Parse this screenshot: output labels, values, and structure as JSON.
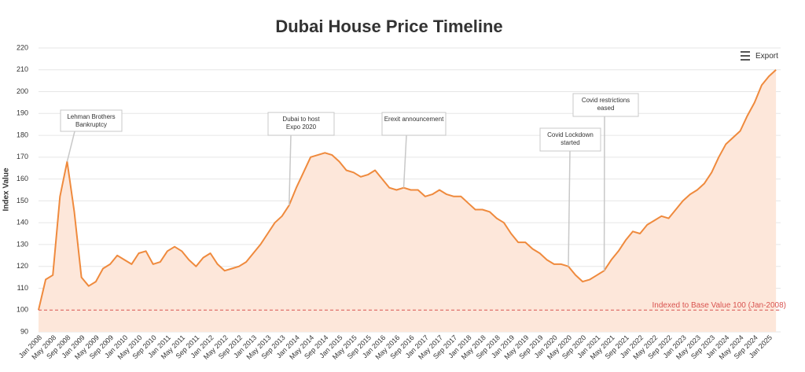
{
  "chart_data": {
    "type": "line",
    "title": "Dubai House Price Timeline",
    "y_label": "Index Value",
    "categories": [
      "Jan 2008",
      null,
      "May 2008",
      null,
      "Sep 2008",
      null,
      "Jan 2009",
      null,
      "May 2009",
      null,
      "Sep 2009",
      null,
      "Jan 2010",
      null,
      "May 2010",
      null,
      "Sep 2010",
      null,
      "Jan 2011",
      null,
      "May 2011",
      null,
      "Sep 2011",
      null,
      "Jan 2012",
      null,
      "May 2012",
      null,
      "Sep 2012",
      null,
      "Jan 2013",
      null,
      "May 2013",
      null,
      "Sep 2013",
      null,
      "Jan 2014",
      null,
      "May 2014",
      null,
      "Sep 2014",
      null,
      "Jan 2015",
      null,
      "May 2015",
      null,
      "Sep 2015",
      null,
      "Jan 2016",
      null,
      "May 2016",
      null,
      "Sep 2016",
      null,
      "Jan 2017",
      null,
      "May 2017",
      null,
      "Sep 2017",
      null,
      "Jan 2018",
      null,
      "May 2018",
      null,
      "Sep 2018",
      null,
      "Jan 2019",
      null,
      "May 2019",
      null,
      "Sep 2019",
      null,
      "Jan 2020",
      null,
      "May 2020",
      null,
      "Sep 2020",
      null,
      "Jan 2021",
      null,
      "May 2021",
      null,
      "Sep 2021",
      null,
      "Jan 2022",
      null,
      "May 2022",
      null,
      "Sep 2022",
      null,
      "Jan 2023",
      null,
      "May 2023",
      null,
      "Sep 2023",
      null,
      "Jan 2024",
      null,
      "May 2024",
      null,
      "Sep 2024",
      null,
      "Jan 2025",
      null
    ],
    "series": [
      {
        "name": "Index Value",
        "color": "#ef8a3d",
        "fill": "#fde7da",
        "values": [
          100,
          114,
          116,
          152,
          168,
          145,
          115,
          111,
          113,
          119,
          121,
          125,
          123,
          121,
          126,
          127,
          121,
          122,
          127,
          129,
          127,
          123,
          120,
          124,
          126,
          121,
          118,
          119,
          120,
          122,
          126,
          130,
          135,
          140,
          143,
          148,
          156,
          163,
          170,
          171,
          172,
          171,
          168,
          164,
          163,
          161,
          162,
          164,
          160,
          156,
          155,
          156,
          155,
          155,
          152,
          153,
          155,
          153,
          152,
          152,
          149,
          146,
          146,
          145,
          142,
          140,
          135,
          131,
          131,
          128,
          126,
          123,
          121,
          121,
          120,
          116,
          113,
          114,
          116,
          118,
          123,
          127,
          132,
          136,
          135,
          139,
          141,
          143,
          142,
          146,
          150,
          153,
          155,
          158,
          163,
          170,
          176,
          179,
          182,
          189,
          195,
          203,
          207,
          210
        ]
      }
    ],
    "ylim": [
      90,
      220
    ],
    "yticks": [
      90,
      100,
      110,
      120,
      130,
      140,
      150,
      160,
      170,
      180,
      190,
      200,
      210,
      220
    ],
    "grid": true,
    "reference_line": {
      "value": 100,
      "label": "Indexed to Base Value 100 (Jan-2008)",
      "color": "#d9534f"
    },
    "annotations": [
      "Lehman Brothers Bankruptcy",
      "Dubai to host Expo 2020",
      "Erexit announcement",
      "Covid Lockdown started",
      "Covid restrictions eased"
    ],
    "export_label": "Export"
  }
}
